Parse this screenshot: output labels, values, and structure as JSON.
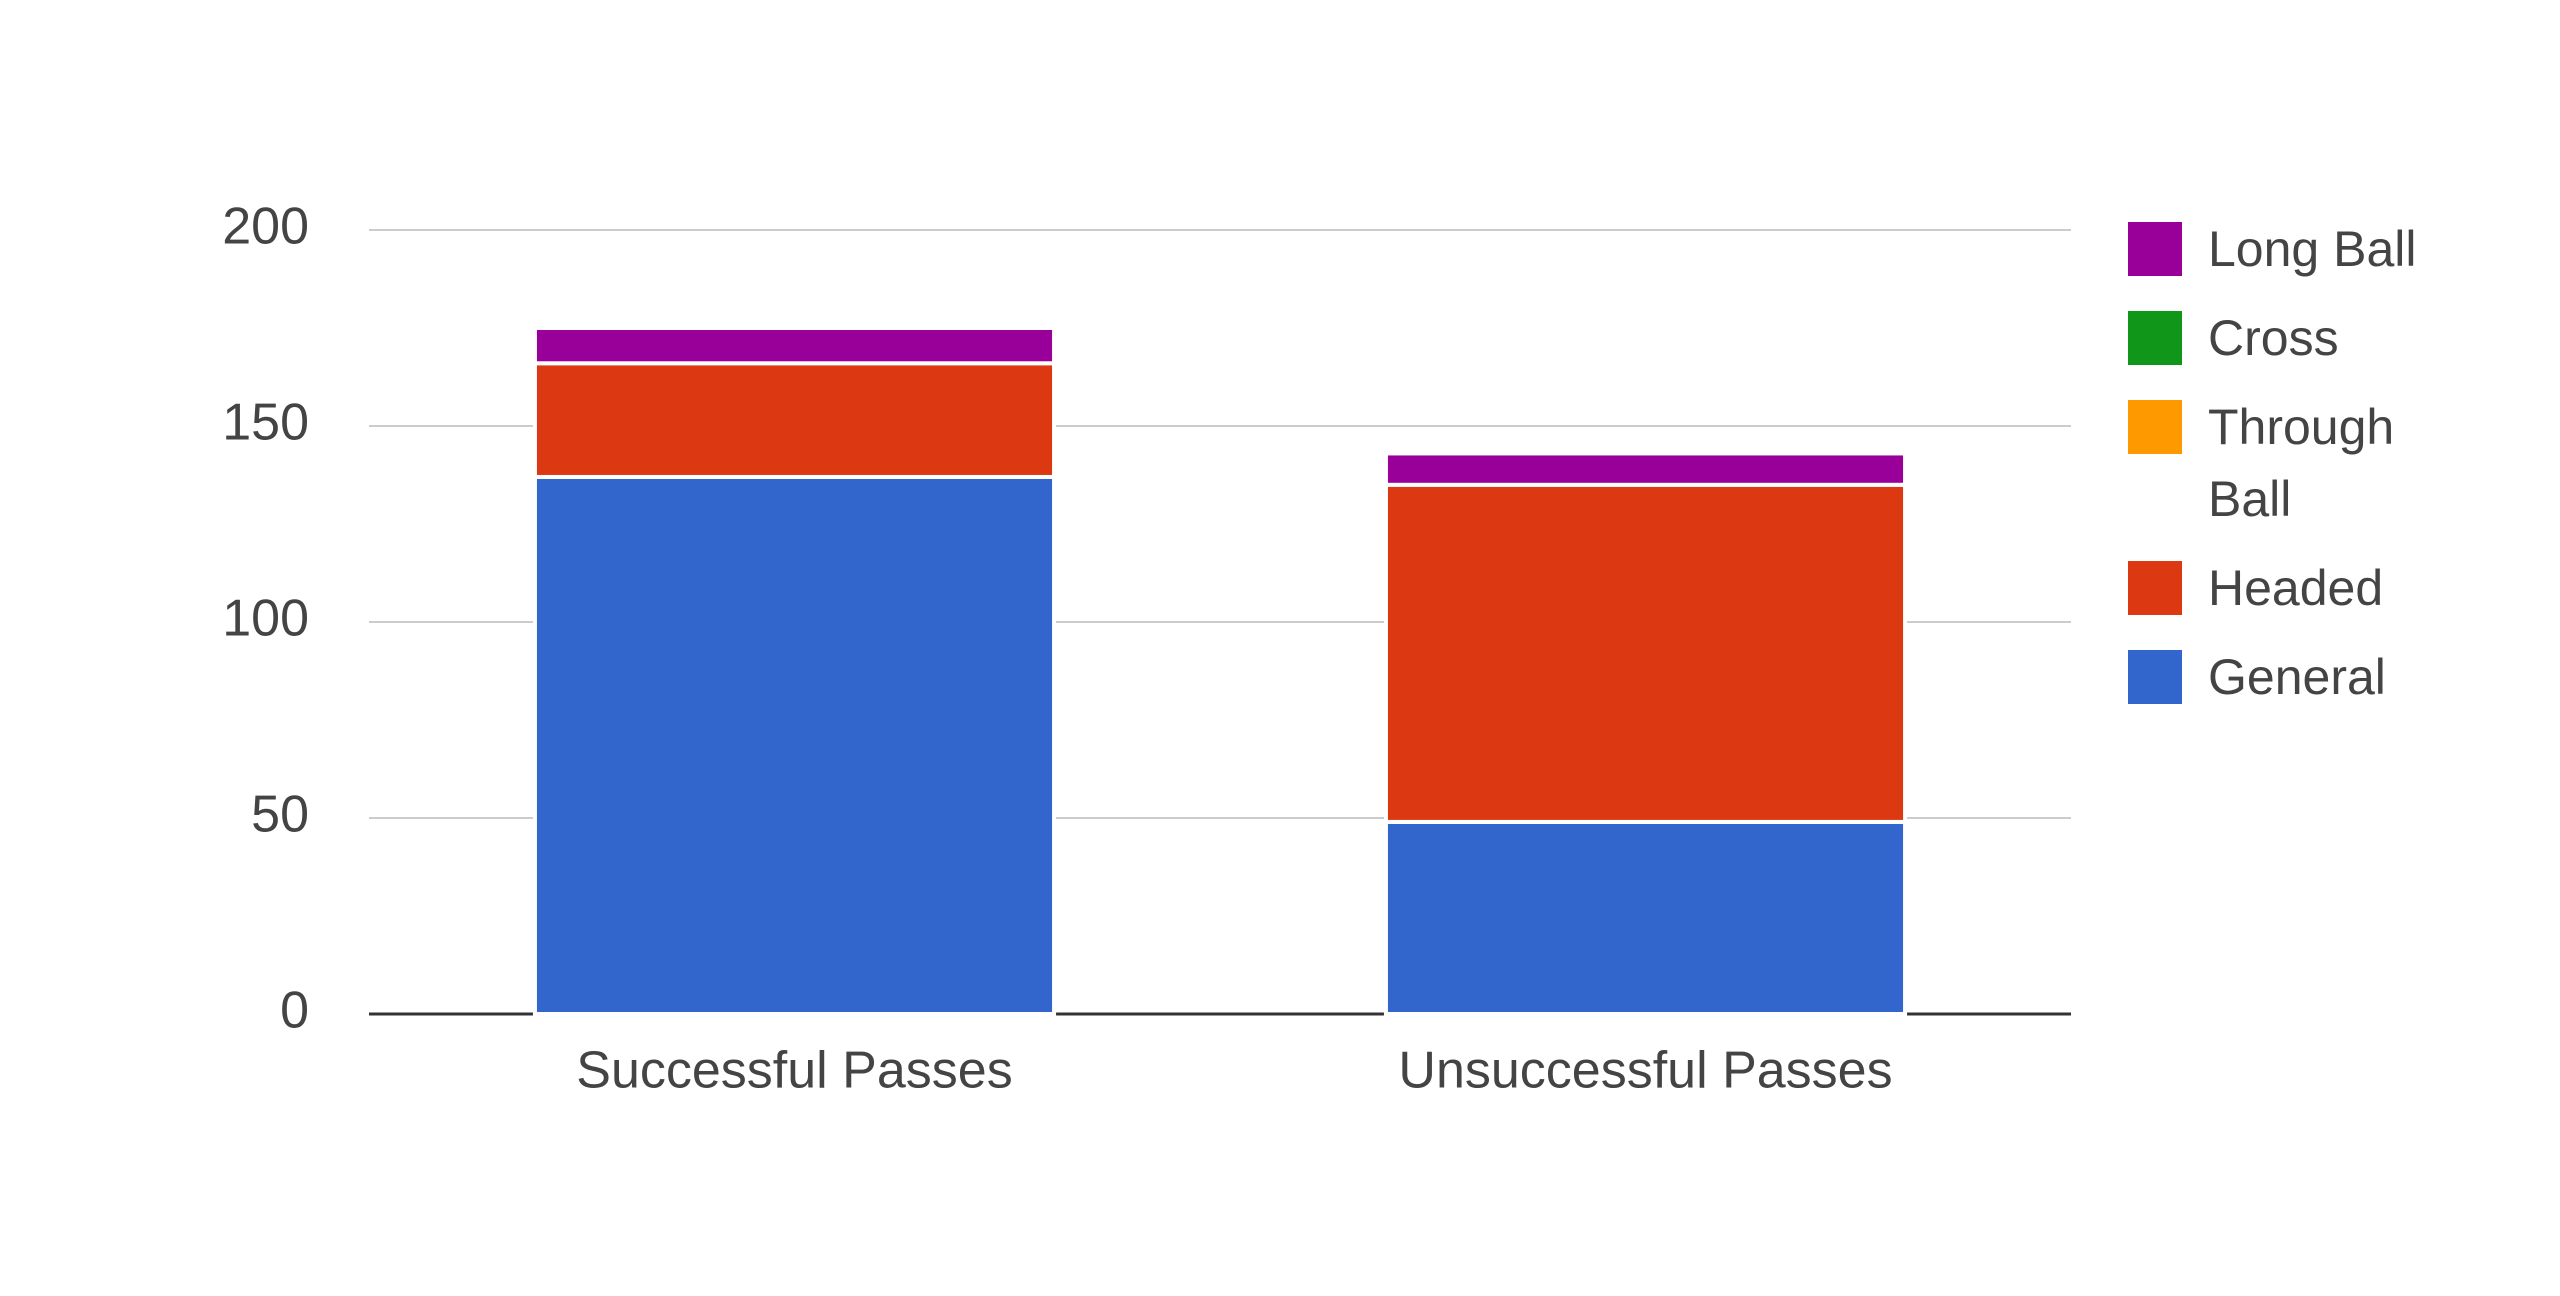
{
  "chart_data": {
    "type": "stacked_bar",
    "categories": [
      "Successful Passes",
      "Unsuccessful Passes"
    ],
    "series": [
      {
        "name": "General",
        "color": "#3366cc",
        "values": [
          137,
          49
        ]
      },
      {
        "name": "Headed",
        "color": "#dc3912",
        "values": [
          29,
          86
        ]
      },
      {
        "name": "Through Ball",
        "color": "#ff9900",
        "values": [
          0,
          0
        ]
      },
      {
        "name": "Cross",
        "color": "#109618",
        "values": [
          0,
          0
        ]
      },
      {
        "name": "Long Ball",
        "color": "#990099",
        "values": [
          9,
          8
        ]
      }
    ],
    "ylim": [
      0,
      200
    ],
    "yticks": [
      0,
      50,
      100,
      150,
      200
    ],
    "grid": true,
    "legend": "right"
  }
}
